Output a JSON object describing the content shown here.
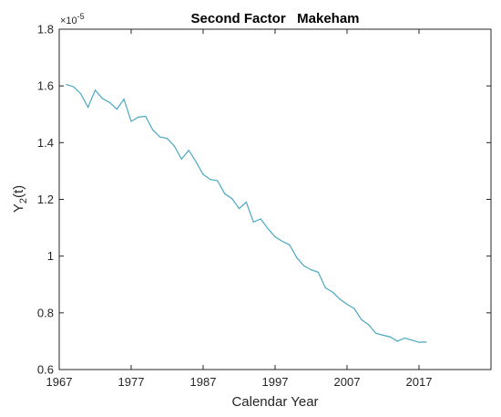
{
  "chart_data": {
    "type": "line",
    "title": "Second Factor   Makeham",
    "xlabel": "Calendar Year",
    "ylabel": "Y",
    "ylabel_sub": "2",
    "ylabel_tail": "(t)",
    "y_exponent_base": "×10",
    "y_exponent_power": "-5",
    "xlim": [
      1967,
      2027
    ],
    "ylim": [
      0.6,
      1.8
    ],
    "xticks": [
      1967,
      1977,
      1987,
      1997,
      2007,
      2017
    ],
    "xtick_labels": [
      "1967",
      "1977",
      "1987",
      "1997",
      "2007",
      "2017"
    ],
    "yticks": [
      0.6,
      0.8,
      1.0,
      1.2,
      1.4,
      1.6,
      1.8
    ],
    "ytick_labels": [
      "0.6",
      "0.8",
      "1",
      "1.2",
      "1.4",
      "1.6",
      "1.8"
    ],
    "grid": false,
    "series": [
      {
        "color": "#4aa8c0",
        "x": [
          1968,
          1969,
          1970,
          1971,
          1972,
          1973,
          1974,
          1975,
          1976,
          1977,
          1978,
          1979,
          1980,
          1981,
          1982,
          1983,
          1984,
          1985,
          1986,
          1987,
          1988,
          1989,
          1990,
          1991,
          1992,
          1993,
          1994,
          1995,
          1996,
          1997,
          1998,
          1999,
          2000,
          2001,
          2002,
          2003,
          2004,
          2005,
          2006,
          2007,
          2008,
          2009,
          2010,
          2011,
          2012,
          2013,
          2014,
          2015,
          2016,
          2017,
          2018
        ],
        "y": [
          1.605,
          1.597,
          1.572,
          1.525,
          1.585,
          1.556,
          1.542,
          1.518,
          1.553,
          1.475,
          1.49,
          1.493,
          1.445,
          1.42,
          1.415,
          1.388,
          1.342,
          1.373,
          1.333,
          1.288,
          1.27,
          1.266,
          1.22,
          1.203,
          1.168,
          1.19,
          1.12,
          1.131,
          1.097,
          1.068,
          1.052,
          1.04,
          0.995,
          0.966,
          0.952,
          0.943,
          0.888,
          0.873,
          0.848,
          0.83,
          0.815,
          0.776,
          0.758,
          0.728,
          0.721,
          0.715,
          0.7,
          0.711,
          0.704,
          0.696,
          0.697
        ]
      }
    ]
  }
}
